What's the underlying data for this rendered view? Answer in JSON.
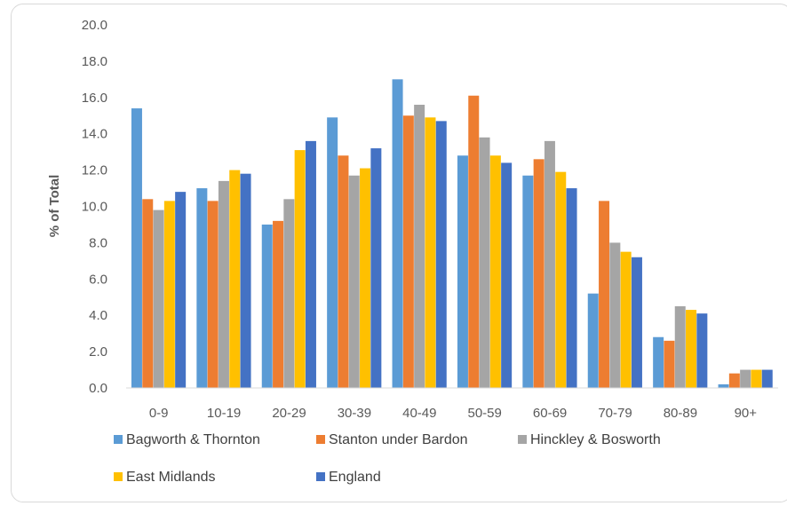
{
  "chart_data": {
    "type": "bar",
    "title": "",
    "xlabel": "",
    "ylabel": "% of Total",
    "ylim": [
      0,
      20
    ],
    "ytick_step": 2,
    "ytick_labels": [
      "0.0",
      "2.0",
      "4.0",
      "6.0",
      "8.0",
      "10.0",
      "12.0",
      "14.0",
      "16.0",
      "18.0",
      "20.0"
    ],
    "grid": false,
    "legend_position": "bottom",
    "categories": [
      "0-9",
      "10-19",
      "20-29",
      "30-39",
      "40-49",
      "50-59",
      "60-69",
      "70-79",
      "80-89",
      "90+"
    ],
    "series": [
      {
        "name": "Bagworth & Thornton",
        "color": "#5b9bd5",
        "values": [
          15.4,
          11.0,
          9.0,
          14.9,
          17.0,
          12.8,
          11.7,
          5.2,
          2.8,
          0.2
        ]
      },
      {
        "name": "Stanton under Bardon",
        "color": "#ed7d31",
        "values": [
          10.4,
          10.3,
          9.2,
          12.8,
          15.0,
          16.1,
          12.6,
          10.3,
          2.6,
          0.8
        ]
      },
      {
        "name": "Hinckley & Bosworth",
        "color": "#a5a5a5",
        "values": [
          9.8,
          11.4,
          10.4,
          11.7,
          15.6,
          13.8,
          13.6,
          8.0,
          4.5,
          1.0
        ]
      },
      {
        "name": "East Midlands",
        "color": "#ffc000",
        "values": [
          10.3,
          12.0,
          13.1,
          12.1,
          14.9,
          12.8,
          11.9,
          7.5,
          4.3,
          1.0
        ]
      },
      {
        "name": "England",
        "color": "#4472c4",
        "values": [
          10.8,
          11.8,
          13.6,
          13.2,
          14.7,
          12.4,
          11.0,
          7.2,
          4.1,
          1.0
        ]
      }
    ]
  }
}
